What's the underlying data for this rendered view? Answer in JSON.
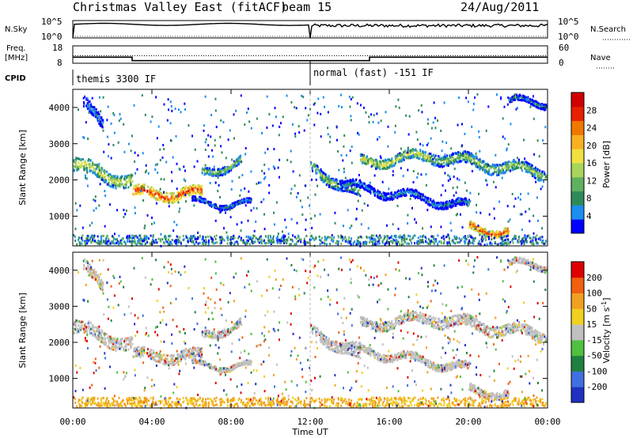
{
  "header": {
    "title": "Christmas Valley East (fitACF)",
    "beam": "beam 15",
    "date": "24/Aug/2011"
  },
  "nsky_panel": {
    "label": "N.Sky",
    "ticks_left": [
      "10^5",
      "10^0"
    ],
    "ticks_right": [
      "10^5",
      "10^0"
    ],
    "right_label": "N.Search"
  },
  "freq_panel": {
    "label_line1": "Freq.",
    "label_line2": "[MHz]",
    "ticks_left": [
      "18",
      "8"
    ],
    "ticks_right": [
      "60",
      "0"
    ],
    "right_label": "Nave",
    "freq_steps": [
      {
        "t_start": 0,
        "t_end": 3,
        "value": 11.5
      },
      {
        "t_start": 3,
        "t_end": 12,
        "value": 9.5
      },
      {
        "t_start": 12,
        "t_end": 15,
        "value": 9.5
      },
      {
        "t_start": 15,
        "t_end": 24,
        "value": 11.5
      }
    ],
    "nave_steps": [
      {
        "t_start": 0,
        "t_end": 12,
        "value": 26
      },
      {
        "t_start": 12,
        "t_end": 24,
        "value": 26
      }
    ]
  },
  "cpid_panel": {
    "label": "CPID",
    "modes": [
      "themis 3300 IF",
      "normal (fast) -151 IF"
    ]
  },
  "chart_data": [
    {
      "type": "heatmap",
      "name": "power",
      "ylabel": "Slant Range [km]",
      "ylim": [
        180,
        4500
      ],
      "yticks": [
        "4000",
        "3000",
        "2000",
        "1000"
      ],
      "yticks_values": [
        4000,
        3000,
        2000,
        1000
      ],
      "xlim": [
        0,
        24
      ],
      "colorbar": {
        "label": "Power [dB]",
        "ticks": [
          "28",
          "24",
          "20",
          "16",
          "12",
          "8",
          "4"
        ],
        "colors": [
          "#0000ff",
          "#1c8ef0",
          "#2e8b57",
          "#61b060",
          "#a8d45a",
          "#f0e040",
          "#f8b020",
          "#f07800",
          "#e82000",
          "#d00000"
        ]
      }
    },
    {
      "type": "heatmap",
      "name": "velocity",
      "ylabel": "Slant Range [km]",
      "ylim": [
        180,
        4500
      ],
      "yticks": [
        "4000",
        "3000",
        "2000",
        "1000"
      ],
      "yticks_values": [
        4000,
        3000,
        2000,
        1000
      ],
      "xlim": [
        0,
        24
      ],
      "xticks": [
        "00:00",
        "04:00",
        "08:00",
        "12:00",
        "16:00",
        "20:00",
        "00:00"
      ],
      "xticks_values": [
        0,
        4,
        8,
        12,
        16,
        20,
        24
      ],
      "xlabel": "Time UT",
      "colorbar": {
        "label": "Velocity [m s^-1]",
        "ticks": [
          "200",
          "100",
          "50",
          "15",
          "-15",
          "-50",
          "-100",
          "-200"
        ],
        "colors": [
          "#2030c0",
          "#4070e0",
          "#208040",
          "#50c040",
          "#c0c0c0",
          "#f0d020",
          "#f0a020",
          "#f06010",
          "#e00000"
        ]
      }
    }
  ]
}
